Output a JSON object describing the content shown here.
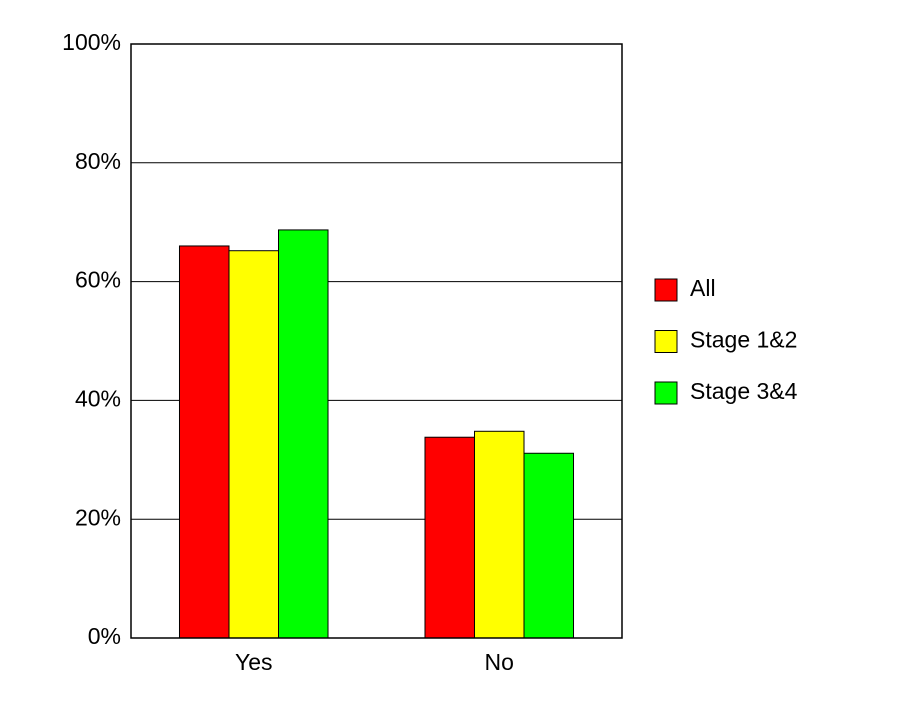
{
  "chart_data": {
    "type": "bar",
    "categories": [
      "Yes",
      "No"
    ],
    "series": [
      {
        "name": "All",
        "color": "#ff0000",
        "values": [
          66.0,
          33.8
        ]
      },
      {
        "name": "Stage 1&2",
        "color": "#ffff00",
        "values": [
          65.2,
          34.8
        ]
      },
      {
        "name": "Stage 3&4",
        "color": "#00ff00",
        "values": [
          68.7,
          31.1
        ]
      }
    ],
    "ylim": [
      0,
      100
    ],
    "yticks": [
      {
        "value": 0,
        "label": "0%"
      },
      {
        "value": 20,
        "label": "20%"
      },
      {
        "value": 40,
        "label": "40%"
      },
      {
        "value": 60,
        "label": "60%"
      },
      {
        "value": 80,
        "label": "80%"
      },
      {
        "value": 100,
        "label": "100%"
      }
    ],
    "grid": true,
    "legend": "right"
  }
}
